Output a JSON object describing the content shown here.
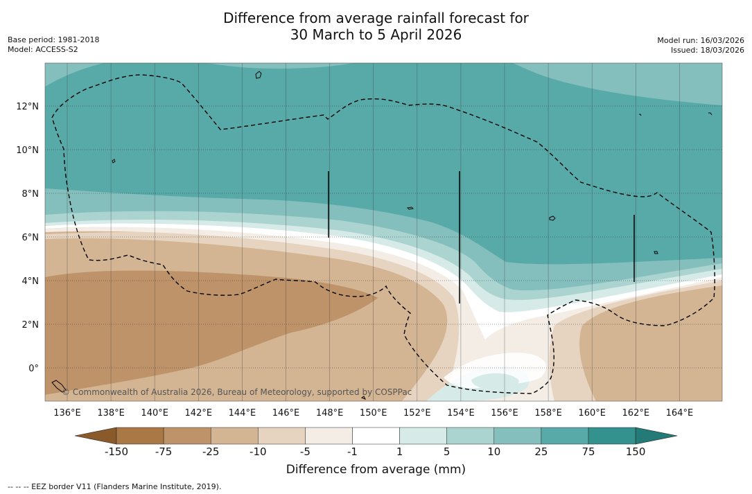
{
  "title_line1": "Difference from average rainfall forecast for",
  "title_line2": "30 March to 5 April 2026",
  "base_period": "Base period: 1981-2018",
  "model": "Model: ACCESS-S2",
  "model_run": "Model run: 16/03/2026",
  "issued": "Issued: 18/03/2026",
  "copyright": "© Commonwealth of Australia 2026, Bureau of Meteorology, supported by COSPPac",
  "footer": "--  --  -- EEZ border V11 (Flanders Marine Institute, 2019).",
  "lon_labels": [
    "136°E",
    "138°E",
    "140°E",
    "142°E",
    "144°E",
    "146°E",
    "148°E",
    "150°E",
    "152°E",
    "154°E",
    "156°E",
    "158°E",
    "160°E",
    "162°E",
    "164°E"
  ],
  "lat_labels": [
    "12°N",
    "10°N",
    "8°N",
    "6°N",
    "4°N",
    "2°N",
    "0°"
  ],
  "colorbar": {
    "title": "Difference from average (mm)",
    "labels": [
      "-150",
      "-75",
      "-25",
      "-10",
      "-5",
      "-1",
      "1",
      "5",
      "10",
      "25",
      "75",
      "150"
    ],
    "colors": [
      "#a97844",
      "#bf936a",
      "#d3b594",
      "#e6d4c0",
      "#f3ede6",
      "#ffffff",
      "#d6eae8",
      "#abd4d1",
      "#84bfbd",
      "#58aaa9",
      "#33928e"
    ],
    "extend_low_color": "#8b5a2b",
    "extend_high_color": "#247a76"
  }
}
